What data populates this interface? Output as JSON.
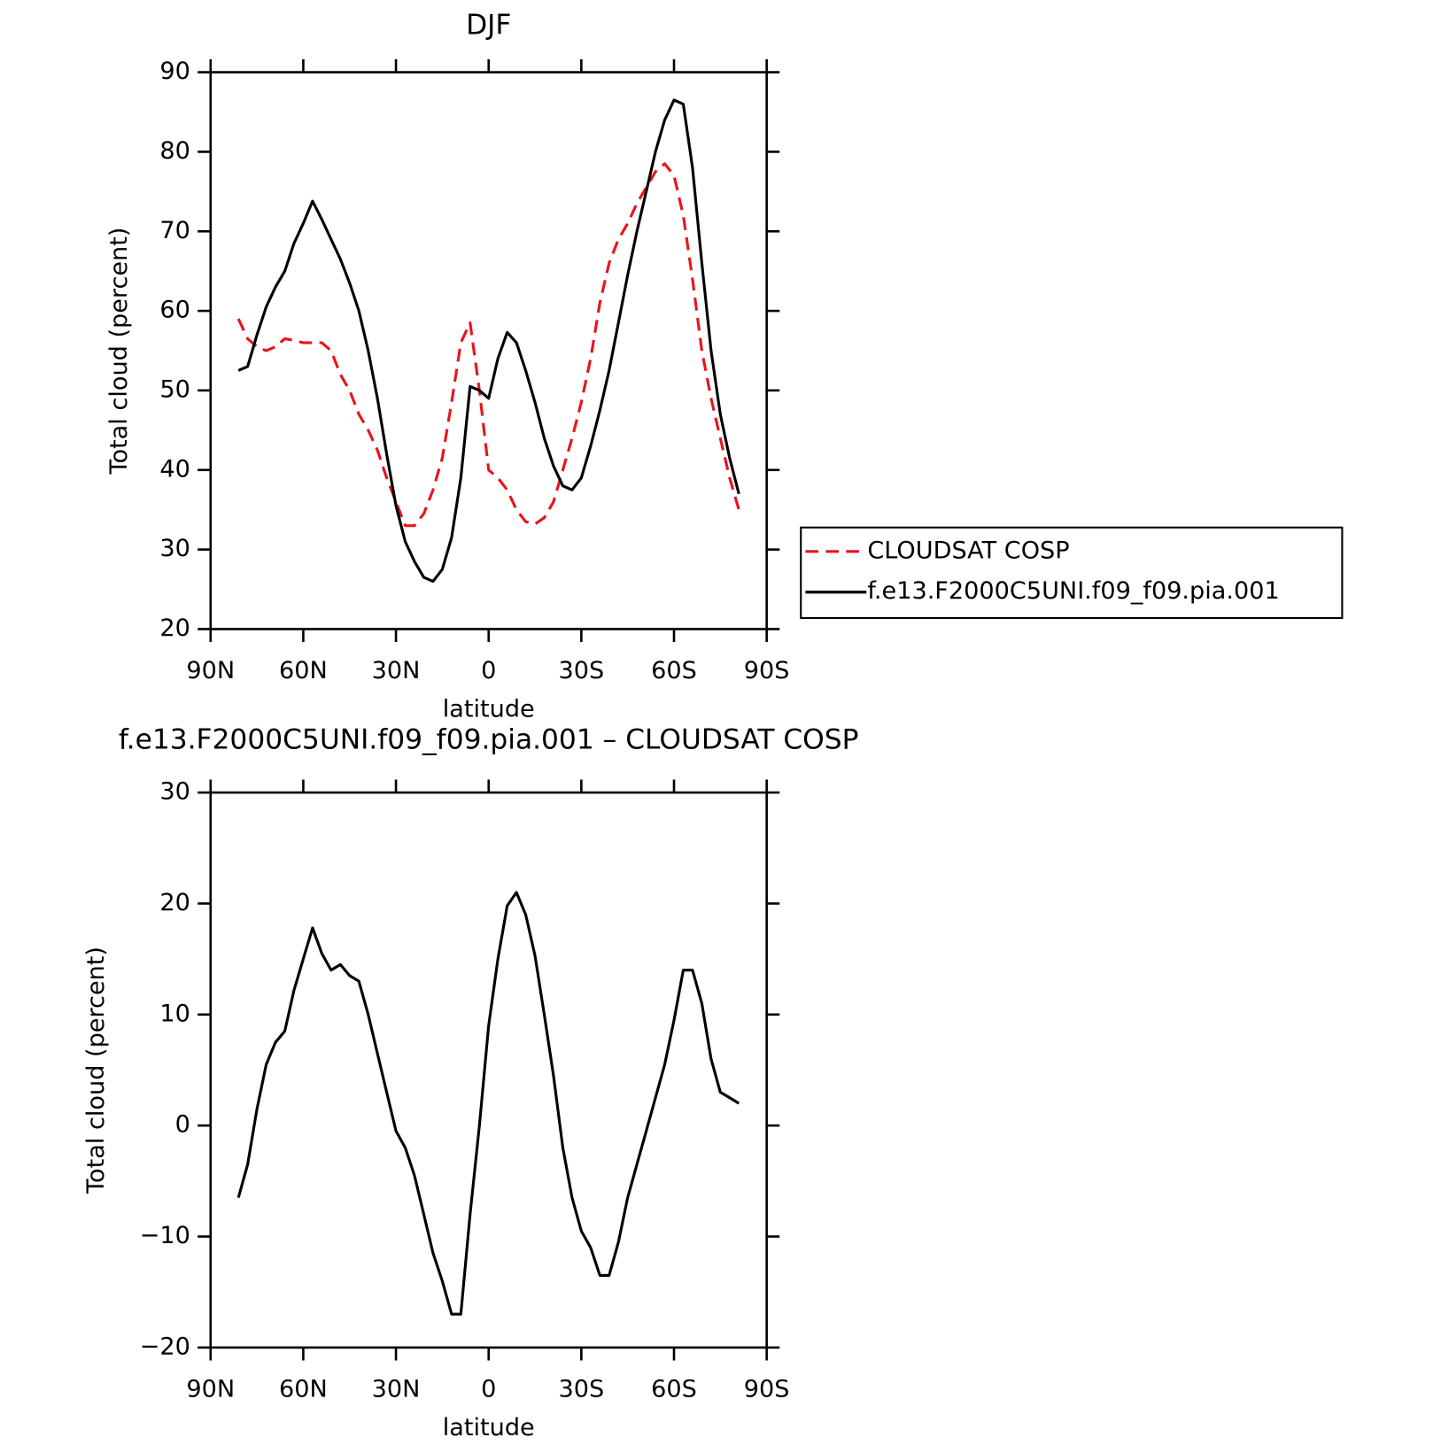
{
  "chart_data": [
    {
      "type": "line",
      "title": "DJF",
      "xlabel": "latitude",
      "ylabel": "Total cloud (percent)",
      "x": [
        81,
        78,
        75,
        72,
        69,
        66,
        63,
        60,
        57,
        54,
        51,
        48,
        45,
        42,
        39,
        36,
        33,
        30,
        27,
        24,
        21,
        18,
        15,
        12,
        9,
        6,
        3,
        0,
        -3,
        -6,
        -9,
        -12,
        -15,
        -18,
        -21,
        -24,
        -27,
        -30,
        -33,
        -36,
        -39,
        -42,
        -45,
        -48,
        -51,
        -54,
        -57,
        -60,
        -63,
        -66,
        -69,
        -72,
        -75,
        -78,
        -81
      ],
      "series": [
        {
          "name": "CLOUDSAT COSP",
          "color": "#e8141c",
          "dashed": true,
          "values": [
            59,
            56.5,
            55.5,
            55,
            55.5,
            56.5,
            56.3,
            56,
            56,
            56,
            55,
            52,
            50,
            47,
            45,
            42.5,
            39,
            36,
            33,
            33,
            34.5,
            37.5,
            41.5,
            48.5,
            56,
            58.5,
            50,
            40,
            39,
            37.5,
            35,
            33.5,
            33.2,
            34,
            36,
            40,
            44,
            48.5,
            54,
            61,
            66,
            69,
            71,
            73.5,
            75.5,
            77.5,
            78.5,
            77,
            72,
            64,
            55,
            49,
            44,
            39,
            35
          ]
        },
        {
          "name": "f.e13.F2000C5UNI.f09_f09.pia.001",
          "color": "#000000",
          "dashed": false,
          "values": [
            52.5,
            53,
            57,
            60.5,
            63,
            65,
            68.5,
            71,
            73.8,
            71.5,
            69,
            66.5,
            63.5,
            60,
            55,
            49,
            42,
            35.5,
            31,
            28.5,
            26.5,
            26,
            27.5,
            31.5,
            39,
            50.5,
            50,
            49,
            54,
            57.3,
            56,
            52.5,
            48.5,
            44,
            40.5,
            38,
            37.5,
            39,
            43,
            47.5,
            52.5,
            58.5,
            64.5,
            70,
            75,
            80,
            84,
            86.5,
            86,
            78,
            66,
            55,
            47,
            41.5,
            37
          ]
        }
      ],
      "xlim": [
        90,
        -90
      ],
      "xticks": [
        {
          "value": 90,
          "label": "90N"
        },
        {
          "value": 60,
          "label": "60N"
        },
        {
          "value": 30,
          "label": "30N"
        },
        0,
        {
          "value": -30,
          "label": "30S"
        },
        {
          "value": -60,
          "label": "60S"
        },
        {
          "value": -90,
          "label": "90S"
        }
      ],
      "ylim": [
        20,
        90
      ],
      "yticks": [
        20,
        30,
        40,
        50,
        60,
        70,
        80,
        90
      ],
      "legend": "right"
    },
    {
      "type": "line",
      "title": "f.e13.F2000C5UNI.f09_f09.pia.001 – CLOUDSAT COSP",
      "xlabel": "latitude",
      "ylabel": "Total cloud (percent)",
      "x": [
        81,
        78,
        75,
        72,
        69,
        66,
        63,
        60,
        57,
        54,
        51,
        48,
        45,
        42,
        39,
        36,
        33,
        30,
        27,
        24,
        21,
        18,
        15,
        12,
        9,
        6,
        3,
        0,
        -3,
        -6,
        -9,
        -12,
        -15,
        -18,
        -21,
        -24,
        -27,
        -30,
        -33,
        -36,
        -39,
        -42,
        -45,
        -48,
        -51,
        -54,
        -57,
        -60,
        -63,
        -66,
        -69,
        -72,
        -75,
        -78,
        -81
      ],
      "series": [
        {
          "color": "#000000",
          "values": [
            -6.5,
            -3.5,
            1.5,
            5.5,
            7.5,
            8.5,
            12.2,
            15,
            17.8,
            15.5,
            14,
            14.5,
            13.5,
            13,
            10,
            6.5,
            3,
            -0.5,
            -2,
            -4.5,
            -8,
            -11.5,
            -14,
            -17,
            -17,
            -8,
            0,
            9,
            15,
            19.8,
            21,
            19,
            15.3,
            10,
            4.5,
            -2,
            -6.5,
            -9.5,
            -11,
            -13.5,
            -13.5,
            -10.5,
            -6.5,
            -3.5,
            -0.5,
            2.5,
            5.5,
            9.5,
            14,
            14,
            11,
            6,
            3,
            2.5,
            2
          ]
        }
      ],
      "xlim": [
        90,
        -90
      ],
      "xticks": [
        {
          "value": 90,
          "label": "90N"
        },
        {
          "value": 60,
          "label": "60N"
        },
        {
          "value": 30,
          "label": "30N"
        },
        0,
        {
          "value": -30,
          "label": "30S"
        },
        {
          "value": -60,
          "label": "60S"
        },
        {
          "value": -90,
          "label": "90S"
        }
      ],
      "ylim": [
        -20,
        30
      ],
      "yticks": [
        {
          "value": -20,
          "label": "−20"
        },
        {
          "value": -10,
          "label": "−10"
        },
        0,
        10,
        20,
        30
      ]
    }
  ]
}
